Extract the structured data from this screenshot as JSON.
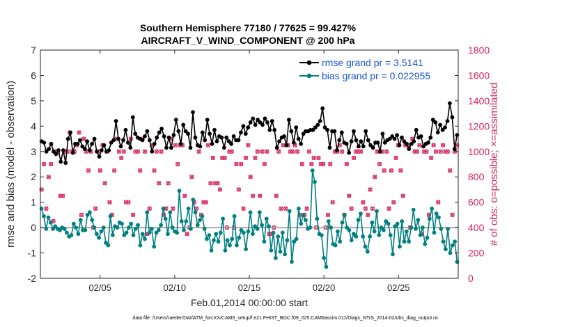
{
  "chart_data": {
    "type": "line",
    "title_line1": "Southern Hemisphere 77180 / 77625 = 99.427%",
    "title_line2": "AIRCRAFT_V_WIND_COMPONENT @ 200 hPa",
    "xlabel": "Feb.01,2014 00:00:00 start",
    "ylabel_left": "rmse and bias (model - observation)",
    "ylabel_right": "# of obs: o=possible; ×=assimilated",
    "footnote": "data file: /Users/raeder/DAI/ATM_forcXX/CAM6_setup/f.e21.FHIST_BGC.f09_025.CAM6assim.011/Diags_NTrS_2014-02/obs_diag_output.nc",
    "xlim": [
      1.0,
      29.0
    ],
    "ylim_left": [
      -2,
      7
    ],
    "ylim_right": [
      0,
      1800
    ],
    "x_ticks": [
      {
        "x": 5,
        "label": "02/05"
      },
      {
        "x": 10,
        "label": "02/10"
      },
      {
        "x": 15,
        "label": "02/15"
      },
      {
        "x": 20,
        "label": "02/20"
      },
      {
        "x": 25,
        "label": "02/25"
      }
    ],
    "left_ticks": [
      {
        "v": -2,
        "label": "-2"
      },
      {
        "v": -1,
        "label": "-1"
      },
      {
        "v": 0,
        "label": "0"
      },
      {
        "v": 1,
        "label": "1"
      },
      {
        "v": 2,
        "label": "2"
      },
      {
        "v": 3,
        "label": "3"
      },
      {
        "v": 4,
        "label": "4"
      },
      {
        "v": 5,
        "label": "5"
      },
      {
        "v": 6,
        "label": "6"
      },
      {
        "v": 7,
        "label": "7"
      }
    ],
    "right_ticks": [
      {
        "v": 0,
        "label": "0"
      },
      {
        "v": 200,
        "label": "200"
      },
      {
        "v": 400,
        "label": "400"
      },
      {
        "v": 600,
        "label": "600"
      },
      {
        "v": 800,
        "label": "800"
      },
      {
        "v": 1000,
        "label": "1000"
      },
      {
        "v": 1200,
        "label": "1200"
      },
      {
        "v": 1400,
        "label": "1400"
      },
      {
        "v": 1600,
        "label": "1600"
      },
      {
        "v": 1800,
        "label": "1800"
      }
    ],
    "series": [
      {
        "name": "rmse grand pr = 3.5141",
        "axis": "left",
        "color": "#000000",
        "values": [
          3.4,
          3.35,
          3.0,
          3.1,
          3.3,
          3.0,
          2.9,
          3.05,
          2.6,
          3.05,
          2.55,
          3.5,
          3.75,
          2.95,
          3.3,
          3.3,
          3.45,
          3.2,
          3.1,
          3.4,
          3.05,
          3.3,
          3.5,
          3.0,
          2.8,
          3.05,
          3.25,
          3.0,
          3.05,
          3.35,
          3.45,
          4.2,
          3.5,
          3.2,
          3.45,
          3.85,
          3.35,
          3.15,
          4.35,
          3.7,
          3.55,
          3.5,
          3.45,
          3.6,
          3.8,
          3.45,
          3.0,
          3.3,
          3.55,
          3.75,
          3.9,
          3.6,
          3.15,
          3.55,
          3.15,
          3.65,
          4.25,
          3.8,
          3.3,
          4.05,
          3.8,
          3.7,
          3.15,
          4.55,
          3.55,
          3.25,
          3.2,
          3.75,
          3.45,
          4.25,
          3.7,
          3.3,
          3.85,
          3.4,
          3.6,
          3.55,
          3.15,
          3.55,
          3.4,
          3.3,
          3.6,
          3.45,
          3.45,
          3.75,
          4.0,
          3.7,
          3.95,
          4.15,
          4.3,
          4.05,
          4.25,
          4.15,
          4.05,
          4.3,
          4.15,
          3.85,
          4.2,
          3.85,
          3.15,
          3.4,
          3.55,
          3.6,
          3.25,
          4.25,
          3.8,
          3.35,
          3.95,
          3.5,
          3.3,
          3.7,
          3.8,
          3.8,
          3.85,
          3.85,
          3.95,
          4.05,
          4.2,
          4.7,
          3.95,
          3.85,
          3.15,
          3.8,
          3.8,
          3.05,
          3.45,
          3.75,
          3.35,
          3.3,
          2.95,
          3.4,
          3.8,
          3.45,
          3.2,
          3.4,
          3.2,
          3.8,
          3.45,
          3.25,
          3.15,
          3.35,
          3.35,
          3.0,
          3.7,
          3.35,
          3.45,
          3.5,
          3.6,
          3.5,
          3.65,
          3.25,
          3.55,
          3.4,
          3.3,
          3.1,
          3.3,
          3.4,
          3.85,
          3.55,
          3.6,
          3.2,
          3.3,
          3.35,
          3.55,
          4.25,
          4.15,
          3.75,
          4.05,
          3.85,
          3.95,
          4.2,
          4.9,
          4.35,
          3.1,
          3.65
        ]
      },
      {
        "name": "bias grand pr = 0.022955",
        "axis": "left",
        "color": "#008080",
        "values": [
          0.75,
          0.45,
          -0.05,
          0.4,
          0.2,
          -0.05,
          0.05,
          -0.05,
          -0.1,
          0.0,
          -0.05,
          -0.2,
          -0.35,
          -0.3,
          0.15,
          0.0,
          -0.25,
          0.3,
          -0.1,
          -0.1,
          0.5,
          0.6,
          0.3,
          0.0,
          -0.25,
          -0.4,
          -0.15,
          0.0,
          -0.6,
          -0.7,
          0.45,
          -0.3,
          0.05,
          0.0,
          0.2,
          0.15,
          -0.3,
          -0.2,
          0.0,
          0.15,
          -0.3,
          -0.05,
          0.1,
          -0.7,
          -0.25,
          -0.45,
          0.6,
          -0.2,
          -0.05,
          -0.75,
          -0.2,
          -0.1,
          0.1,
          0.75,
          0.35,
          -0.25,
          0.6,
          0.0,
          -0.15,
          -0.2,
          1.45,
          0.25,
          -0.1,
          0.25,
          0.75,
          -0.05,
          1.1,
          0.6,
          0.1,
          0.3,
          0.45,
          -0.05,
          -0.45,
          -0.3,
          -0.9,
          -0.5,
          -0.25,
          -0.55,
          -0.2,
          0.35,
          -0.9,
          -0.5,
          -0.7,
          -0.45,
          0.45,
          -0.7,
          -0.4,
          -0.1,
          -0.2,
          -0.85,
          -0.15,
          0.6,
          -0.25,
          0.05,
          -0.05,
          0.6,
          0.1,
          -0.55,
          0.35,
          0.05,
          -0.9,
          -0.2,
          -1.2,
          -0.35,
          -0.95,
          -0.2,
          -1.05,
          -0.5,
          0.65,
          -1.35,
          -0.55,
          -0.45,
          0.75,
          0.15,
          0.5,
          0.3,
          -0.05,
          0.0,
          2.25,
          1.8,
          0.35,
          -0.25,
          -0.3,
          -1.2,
          -1.55,
          0.25,
          0.0,
          -0.65,
          -0.7,
          -0.15,
          -0.55,
          0.2,
          0.5,
          0.0,
          -0.1,
          -0.5,
          -0.25,
          -0.35,
          0.3,
          0.55,
          -0.35,
          -0.75,
          -0.95,
          -0.35,
          0.2,
          -0.15,
          0.65,
          -0.3,
          0.0,
          -0.1,
          0.25,
          0.15,
          -0.3,
          -1.05,
          0.05,
          0.15,
          -0.75,
          0.25,
          -0.55,
          -0.15,
          -0.55,
          0.0,
          0.7,
          -0.05,
          0.3,
          -0.3,
          0.0,
          -0.65,
          -0.4,
          0.35,
          0.75,
          -0.2,
          0.55,
          0.4,
          -0.05,
          -0.55,
          -0.85,
          -0.05,
          -1.0,
          -0.7,
          -0.55,
          -1.35
        ]
      }
    ],
    "obs_counts": {
      "axis": "right",
      "color": "#d6245e",
      "values": [
        700,
        900,
        550,
        800,
        900,
        450,
        1000,
        1000,
        650,
        650,
        1000,
        1000,
        1150,
        1000,
        1000,
        1050,
        1150,
        500,
        1100,
        1000,
        850,
        1000,
        400,
        550,
        1000,
        850,
        1050,
        750,
        1000,
        600,
        500,
        850,
        1100,
        1000,
        950,
        1000,
        600,
        600,
        1100,
        500,
        1000,
        1000,
        850,
        1100,
        1000,
        350,
        550,
        1050,
        850,
        1000,
        750,
        1000,
        500,
        550,
        750,
        1100,
        550,
        1050,
        900,
        1050,
        1050,
        650,
        350,
        400,
        800,
        600,
        550,
        1000,
        500,
        600,
        600,
        1050,
        750,
        950,
        750,
        750,
        700,
        950,
        950,
        400,
        1000,
        1000,
        400,
        900,
        700,
        900,
        550,
        950,
        1050,
        800,
        650,
        950,
        1000,
        650,
        1000,
        900,
        1000,
        350,
        350,
        400,
        650,
        1000,
        550,
        1050,
        550,
        1050,
        1000,
        1000,
        1050,
        1000,
        500,
        900,
        500,
        550,
        1000,
        900,
        950,
        400,
        950,
        900,
        900,
        400,
        500,
        900,
        600,
        1000,
        1000,
        1050,
        1000,
        500,
        900,
        650,
        550,
        950,
        1000,
        1000,
        1000,
        600,
        550,
        500,
        700,
        550,
        800,
        1000,
        900,
        1000,
        850,
        1000,
        550,
        850,
        600,
        950,
        1050,
        850,
        650,
        1050,
        1050,
        400,
        1100,
        1000,
        1000,
        1050,
        350,
        1000,
        1000,
        500,
        950,
        1050,
        1000,
        600,
        1000,
        1050,
        1000,
        1000,
        850,
        500,
        1000,
        1050
      ]
    }
  },
  "legend": {
    "rmse_label": "rmse grand pr = 3.5141",
    "bias_label": "bias grand pr = 0.022955"
  }
}
